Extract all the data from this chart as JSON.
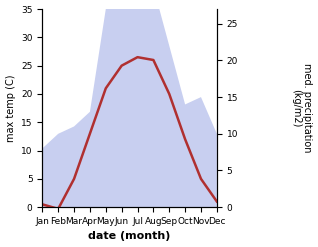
{
  "months": [
    "Jan",
    "Feb",
    "Mar",
    "Apr",
    "May",
    "Jun",
    "Jul",
    "Aug",
    "Sep",
    "Oct",
    "Nov",
    "Dec"
  ],
  "temp": [
    0.5,
    -0.3,
    5,
    13,
    21,
    25,
    26.5,
    26,
    20,
    12,
    5,
    1
  ],
  "precip": [
    8,
    10,
    11,
    13,
    27,
    31,
    35,
    30,
    22,
    14,
    15,
    10
  ],
  "temp_color": "#b03030",
  "precip_fill_color": "#c8cff0",
  "ylabel_left": "max temp (C)",
  "ylabel_right": "med. precipitation\n(kg/m2)",
  "xlabel": "date (month)",
  "ylim_left": [
    0,
    35
  ],
  "ylim_right": [
    0,
    27
  ],
  "yticks_left": [
    0,
    5,
    10,
    15,
    20,
    25,
    30,
    35
  ],
  "yticks_right": [
    0,
    5,
    10,
    15,
    20,
    25
  ],
  "bg_color": "#ffffff",
  "linewidth": 1.8,
  "fontsize_ticks": 6.5,
  "fontsize_ylabel": 7,
  "fontsize_xlabel": 8
}
